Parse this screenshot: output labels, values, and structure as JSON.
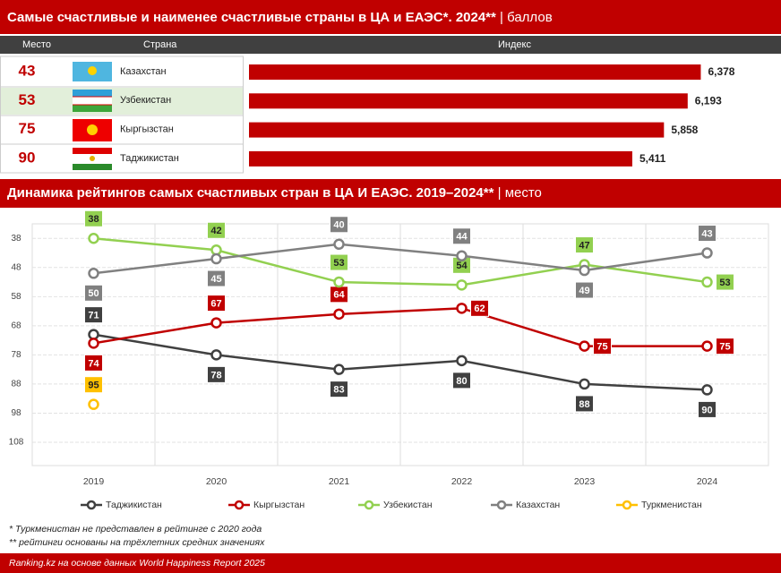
{
  "chart_data": [
    {
      "type": "bar",
      "title": "Самые счастливые и наименее счастливые страны в ЦА и ЕАЭС*. 2024**",
      "unit": "| баллов",
      "columns": [
        "Место",
        "Страна",
        "Индекс"
      ],
      "ranks": [
        43,
        53,
        75,
        90
      ],
      "categories": [
        "Казахстан",
        "Узбекистан",
        "Кыргызстан",
        "Таджикистан"
      ],
      "values": [
        6.378,
        6.193,
        5.858,
        5.411
      ],
      "value_labels": [
        "6,378",
        "6,193",
        "5,858",
        "5,411"
      ],
      "color": "#c00000",
      "xlim": [
        0,
        6.6
      ]
    },
    {
      "type": "line",
      "title": "Динамика рейтингов самых счастливых стран в ЦА И ЕАЭС. 2019–2024**",
      "unit": "| место",
      "categories": [
        "2019",
        "2020",
        "2021",
        "2022",
        "2023",
        "2024"
      ],
      "series": [
        {
          "name": "Таджикистан",
          "color": "#404040",
          "values": [
            71,
            78,
            83,
            80,
            88,
            90
          ]
        },
        {
          "name": "Кыргызстан",
          "color": "#c00000",
          "values": [
            74,
            67,
            64,
            62,
            75,
            75
          ]
        },
        {
          "name": "Узбекистан",
          "color": "#92d050",
          "values": [
            38,
            42,
            53,
            54,
            47,
            53
          ]
        },
        {
          "name": "Казахстан",
          "color": "#808080",
          "values": [
            50,
            45,
            40,
            44,
            49,
            43
          ]
        },
        {
          "name": "Туркменистан",
          "color": "#ffc000",
          "values": [
            95,
            null,
            null,
            null,
            null,
            null
          ]
        }
      ],
      "ylim": [
        33,
        116
      ],
      "y_reversed": true,
      "yticks": [
        38,
        48,
        58,
        68,
        78,
        88,
        98,
        108
      ],
      "grid": true,
      "legend": "bottom"
    }
  ],
  "notes": [
    "* Туркменистан не представлен в рейтинге с 2020 года",
    "** рейтинги основаны на трёхлетних средних значениях"
  ],
  "source": "Ranking.kz на основе данных World Happiness Report 2025"
}
